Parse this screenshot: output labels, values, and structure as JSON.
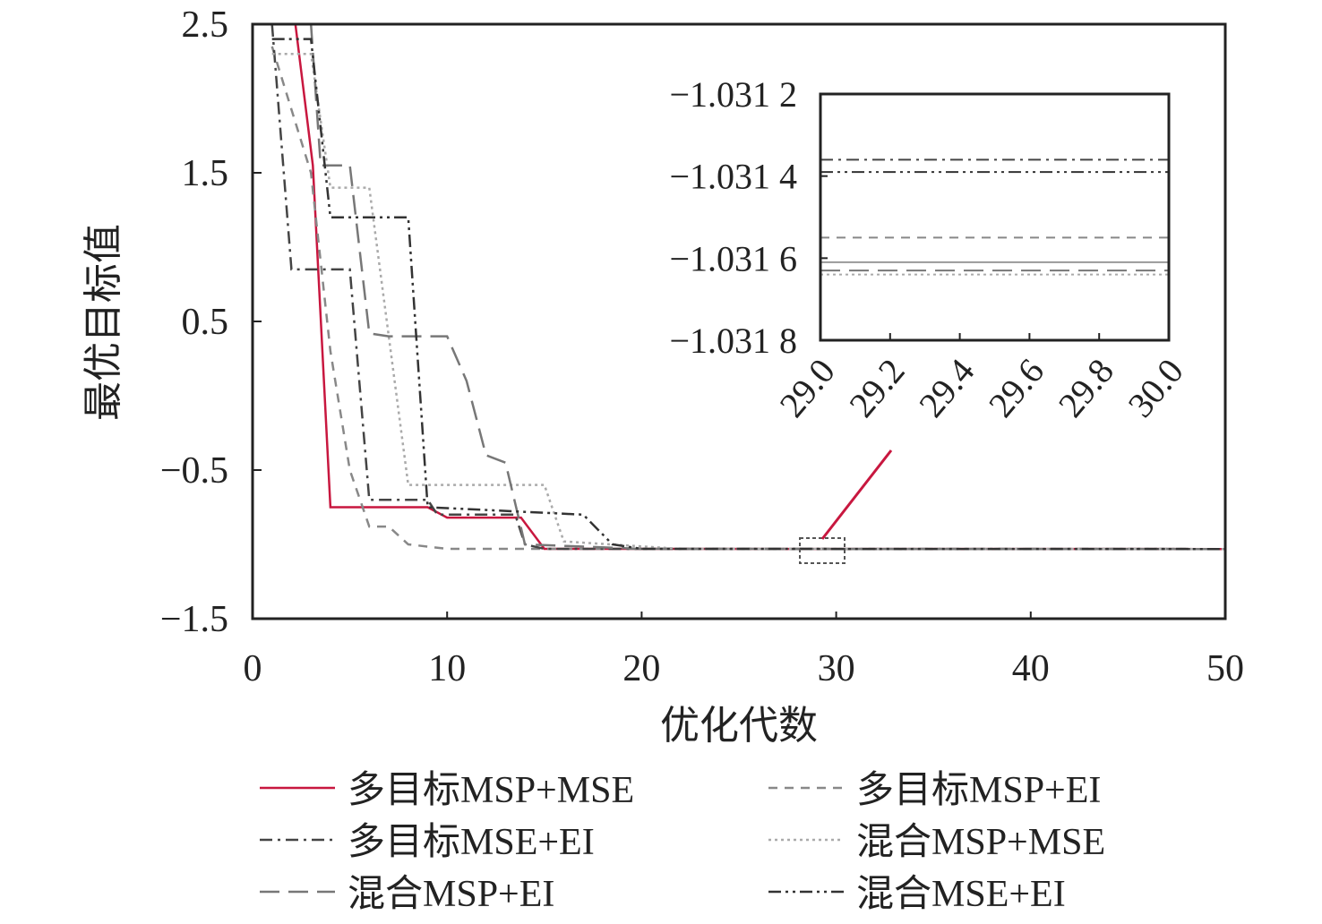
{
  "chart_data": {
    "type": "line",
    "xlabel": "优化代数",
    "ylabel": "最优目标值",
    "xlim": [
      0,
      50
    ],
    "ylim": [
      -1.5,
      2.5
    ],
    "xticks": [
      "0",
      "10",
      "20",
      "30",
      "40",
      "50"
    ],
    "yticks": [
      "−1.5",
      "−0.5",
      "0.5",
      "1.5",
      "2.5"
    ],
    "grid": false,
    "legend_position": "bottom",
    "series": [
      {
        "name": "多目标MSP+MSE",
        "color": "#c8173f",
        "style": "solid",
        "points": [
          [
            2.2,
            2.5
          ],
          [
            3.1,
            1.55
          ],
          [
            4.0,
            -0.75
          ],
          [
            9,
            -0.75
          ],
          [
            10,
            -0.82
          ],
          [
            13.8,
            -0.82
          ],
          [
            15,
            -1.03
          ],
          [
            50,
            -1.0316
          ]
        ],
        "inset_value": -1.03161
      },
      {
        "name": "多目标MSP+EI",
        "color": "#888888",
        "style": "dashed",
        "points": [
          [
            1,
            2.35
          ],
          [
            3,
            1.5
          ],
          [
            4,
            0.3
          ],
          [
            5,
            -0.5
          ],
          [
            6,
            -0.88
          ],
          [
            7,
            -0.88
          ],
          [
            8,
            -1.0
          ],
          [
            10,
            -1.03
          ],
          [
            50,
            -1.0316
          ]
        ],
        "inset_value": -1.03155
      },
      {
        "name": "多目标MSE+EI",
        "color": "#444444",
        "style": "dashdot",
        "points": [
          [
            1,
            2.5
          ],
          [
            2,
            0.85
          ],
          [
            5,
            0.85
          ],
          [
            6,
            -0.7
          ],
          [
            9,
            -0.7
          ],
          [
            9.5,
            -0.8
          ],
          [
            13.5,
            -0.8
          ],
          [
            14,
            -1.0
          ],
          [
            15,
            -1.03
          ],
          [
            50,
            -1.0316
          ]
        ],
        "inset_value": -1.03136
      },
      {
        "name": "混合MSP+MSE",
        "color": "#aaaaaa",
        "style": "dotted",
        "points": [
          [
            1,
            2.3
          ],
          [
            3,
            2.3
          ],
          [
            4,
            1.4
          ],
          [
            6,
            1.4
          ],
          [
            8,
            -0.6
          ],
          [
            15,
            -0.6
          ],
          [
            16,
            -0.98
          ],
          [
            22,
            -1.03
          ],
          [
            50,
            -1.0316
          ]
        ],
        "inset_value": -1.03164
      },
      {
        "name": "混合MSP+EI",
        "color": "#777777",
        "style": "longdash",
        "points": [
          [
            3,
            2.5
          ],
          [
            3.5,
            1.55
          ],
          [
            5,
            1.55
          ],
          [
            6,
            0.42
          ],
          [
            7,
            0.4
          ],
          [
            10,
            0.4
          ],
          [
            11,
            0.1
          ],
          [
            12,
            -0.4
          ],
          [
            13,
            -0.45
          ],
          [
            14,
            -1.0
          ],
          [
            20,
            -1.03
          ],
          [
            50,
            -1.0316
          ]
        ],
        "inset_value": -1.03163
      },
      {
        "name": "混合MSE+EI",
        "color": "#333333",
        "style": "dashdotdot",
        "points": [
          [
            1,
            2.4
          ],
          [
            3,
            2.4
          ],
          [
            4,
            1.2
          ],
          [
            8,
            1.2
          ],
          [
            9,
            -0.75
          ],
          [
            17,
            -0.8
          ],
          [
            18.5,
            -1.0
          ],
          [
            20,
            -1.03
          ],
          [
            50,
            -1.0316
          ]
        ],
        "inset_value": -1.03139
      }
    ],
    "inset": {
      "xlim": [
        29.0,
        30.0
      ],
      "ylim": [
        -1.0318,
        -1.0312
      ],
      "xticks": [
        "29.0",
        "29.2",
        "29.4",
        "29.6",
        "29.8",
        "30.0"
      ],
      "yticks": [
        "−1.031 2",
        "−1.031 4",
        "−1.031 6",
        "−1.031 8"
      ],
      "zoom_region_x": [
        28.5,
        30.5
      ]
    }
  }
}
